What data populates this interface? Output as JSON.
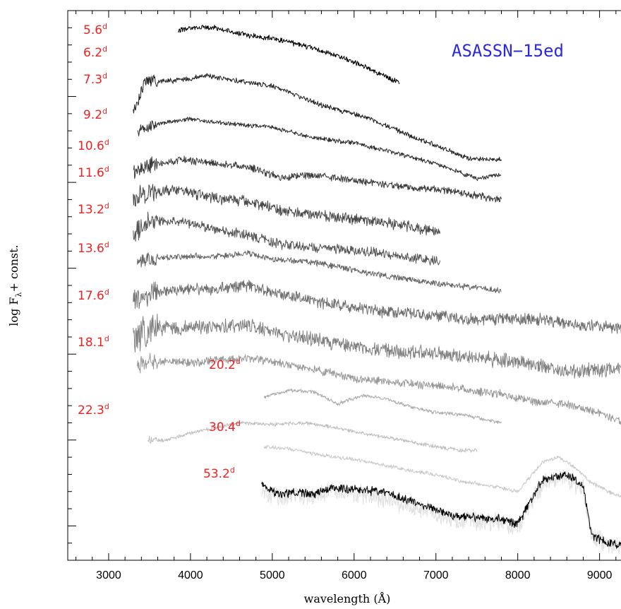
{
  "chart_data": {
    "type": "line",
    "title": "ASASSN−15ed",
    "title_color": "#2a2adf",
    "xlabel": "wavelength (Å)",
    "ylabel": "log F",
    "ylabel_sub": "λ",
    "ylabel_tail": "+ const.",
    "xlim": [
      2500,
      9400
    ],
    "x_ticks": [
      3000,
      4000,
      5000,
      6000,
      7000,
      8000,
      9000
    ],
    "label_color": "#ee2222",
    "epoch_unit": "d",
    "grid": false,
    "series": [
      {
        "name": "5.6",
        "color": "#000000",
        "noise": 0.35,
        "x": [
          3850,
          4000,
          4300,
          4700,
          5000,
          5500,
          5900,
          6200,
          6550
        ],
        "y": [
          1.2,
          1.0,
          1.0,
          1.45,
          1.6,
          2.2,
          2.8,
          3.4,
          4.2
        ]
      },
      {
        "name": "6.2",
        "color": "#222222",
        "noise": 0.35,
        "x": [
          3300,
          3450,
          3800,
          4200,
          4600,
          5000,
          5600,
          6200,
          6800,
          7400,
          7800
        ],
        "y": [
          6.0,
          4.1,
          4.1,
          3.8,
          4.1,
          4.4,
          5.5,
          6.3,
          7.5,
          8.6,
          8.7
        ]
      },
      {
        "name": "7.3",
        "color": "#2f2f2f",
        "noise": 0.3,
        "x": [
          3350,
          3600,
          4000,
          4500,
          5000,
          5500,
          6000,
          6500,
          7000,
          7500,
          7800
        ],
        "y": [
          7.0,
          6.6,
          6.3,
          6.6,
          6.8,
          7.4,
          7.7,
          8.3,
          8.9,
          9.8,
          9.5
        ]
      },
      {
        "name": "9.2",
        "color": "#3b3b3b",
        "noise": 0.5,
        "x": [
          3300,
          3500,
          3900,
          4300,
          4700,
          5100,
          5500,
          5900,
          6300,
          6700,
          7000,
          7400,
          7800
        ],
        "y": [
          9.4,
          9.0,
          8.7,
          8.9,
          9.1,
          9.7,
          9.6,
          9.8,
          10.1,
          10.3,
          10.4,
          10.7,
          11.0
        ]
      },
      {
        "name": "10.6",
        "color": "#4a4a4a",
        "noise": 0.75,
        "x": [
          3300,
          3500,
          3900,
          4300,
          4700,
          5100,
          5500,
          5900,
          6300,
          6700,
          7050
        ],
        "y": [
          11.0,
          10.5,
          10.5,
          10.9,
          11.1,
          11.6,
          11.9,
          12.1,
          12.3,
          12.6,
          12.9
        ]
      },
      {
        "name": "11.6",
        "color": "#555555",
        "noise": 0.65,
        "x": [
          3300,
          3500,
          3900,
          4300,
          4700,
          5100,
          5500,
          5900,
          6300,
          6700,
          7050
        ],
        "y": [
          13.1,
          12.2,
          12.3,
          12.7,
          13.1,
          13.6,
          13.8,
          13.9,
          14.1,
          14.4,
          14.6
        ]
      },
      {
        "name": "13.2",
        "color": "#666666",
        "noise": 0.4,
        "x": [
          3350,
          3600,
          4000,
          4400,
          4700,
          5000,
          5400,
          5800,
          6200,
          6600,
          7000,
          7400,
          7800
        ],
        "y": [
          14.6,
          14.4,
          14.3,
          14.3,
          14.1,
          14.5,
          14.6,
          14.9,
          15.3,
          15.6,
          15.9,
          16.1,
          16.3
        ]
      },
      {
        "name": "13.6",
        "color": "#707070",
        "noise": 0.8,
        "x": [
          3300,
          3500,
          3900,
          4300,
          4700,
          5100,
          5500,
          5900,
          6300,
          6700,
          7100,
          7500,
          7900,
          8300,
          8700,
          9100,
          9400
        ],
        "y": [
          17.0,
          16.5,
          16.2,
          16.2,
          16.0,
          16.5,
          16.9,
          17.2,
          17.5,
          17.6,
          17.8,
          18.0,
          17.9,
          18.0,
          18.3,
          18.4,
          18.6
        ]
      },
      {
        "name": "17.6",
        "color": "#808080",
        "noise": 1.0,
        "x": [
          3300,
          3500,
          3900,
          4300,
          4700,
          5100,
          5500,
          5900,
          6300,
          6700,
          7100,
          7500,
          7900,
          8300,
          8700,
          9100,
          9400
        ],
        "y": [
          19.3,
          18.5,
          18.5,
          18.4,
          18.3,
          18.9,
          19.1,
          19.5,
          19.7,
          19.9,
          20.0,
          20.2,
          20.4,
          20.7,
          21.0,
          20.9,
          21.0
        ]
      },
      {
        "name": "18.1",
        "color": "#999999",
        "noise": 0.55,
        "x": [
          3350,
          3700,
          4000,
          4400,
          4800,
          5200,
          5600,
          6000,
          6400,
          6800,
          7200,
          7500,
          7800,
          8200,
          8600,
          8900,
          9300
        ],
        "y": [
          20.6,
          20.4,
          20.5,
          20.3,
          20.3,
          20.6,
          21.0,
          21.4,
          21.6,
          21.8,
          21.9,
          22.2,
          22.3,
          22.8,
          22.9,
          23.3,
          24.0
        ]
      },
      {
        "name": "20.2",
        "color": "#ababab",
        "noise": 0.25,
        "x": [
          4900,
          5200,
          5500,
          5800,
          6100,
          6400,
          6700,
          7000,
          7300,
          7600,
          7800
        ],
        "y": [
          22.5,
          22.1,
          22.2,
          22.9,
          22.4,
          22.6,
          23.1,
          23.4,
          23.5,
          23.8,
          24.0
        ]
      },
      {
        "name": "22.3",
        "color": "#bdbdbd",
        "noise": 0.25,
        "x": [
          3480,
          3700,
          4000,
          4300,
          4600,
          5000,
          5400,
          5800,
          6200,
          6600,
          7000,
          7300,
          7500
        ],
        "y": [
          25.0,
          25.0,
          24.6,
          24.3,
          24.0,
          24.1,
          24.0,
          24.3,
          24.7,
          25.0,
          25.4,
          25.6,
          25.6
        ]
      },
      {
        "name": "30.4",
        "color": "#c9c9c9",
        "noise": 0.25,
        "x": [
          4900,
          5200,
          5500,
          5800,
          6100,
          6400,
          6700,
          7000,
          7300,
          7600,
          8000,
          8300,
          8500,
          8700,
          8900,
          9200,
          9400
        ],
        "y": [
          25.4,
          25.5,
          25.8,
          26.0,
          26.2,
          26.5,
          26.8,
          27.0,
          27.4,
          27.6,
          28.0,
          26.3,
          26.0,
          26.6,
          27.5,
          28.2,
          28.5
        ]
      },
      {
        "name": "53.2 (smoothed)",
        "color": "#000000",
        "noise": 0.6,
        "x": [
          4870,
          5100,
          5300,
          5500,
          5700,
          6000,
          6300,
          6600,
          6900,
          7200,
          7500,
          7800,
          8000,
          8300,
          8600,
          8800,
          8900,
          9100,
          9400
        ],
        "y": [
          27.6,
          28.2,
          28.0,
          28.2,
          27.8,
          27.9,
          28.0,
          28.4,
          28.9,
          29.4,
          29.5,
          29.6,
          29.9,
          27.3,
          27.0,
          27.7,
          30.5,
          31.0,
          31.2
        ]
      },
      {
        "name": "53.2 (raw)",
        "color": "#e0e0e0",
        "noise": 1.3,
        "x": [
          4870,
          5100,
          5300,
          5500,
          5700,
          6000,
          6300,
          6600,
          6900,
          7200,
          7500,
          7800,
          8000,
          8300,
          8600,
          8800,
          8900,
          9100,
          9400
        ],
        "y": [
          28.0,
          28.4,
          28.2,
          28.4,
          28.0,
          28.1,
          28.3,
          28.7,
          29.1,
          29.6,
          29.7,
          29.8,
          30.1,
          27.5,
          27.2,
          27.9,
          30.6,
          31.1,
          31.3
        ]
      }
    ],
    "epoch_labels": [
      "5.6",
      "6.2",
      "7.3",
      "9.2",
      "10.6",
      "11.6",
      "13.2",
      "13.6",
      "17.6",
      "18.1",
      "20.2",
      "22.3",
      "30.4",
      "53.2"
    ]
  }
}
